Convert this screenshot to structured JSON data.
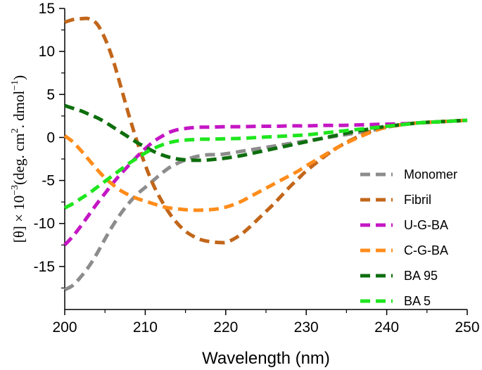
{
  "chart_data": {
    "type": "line",
    "title": "",
    "xlabel": "Wavelength (nm)",
    "ylabel": {
      "prefix": "[θ] × 10",
      "exponent": "−3",
      "body": "(deg. cm",
      "body_exponent": "2",
      "body2": ". dmol",
      "body2_exponent": "−1",
      "suffix": ")"
    },
    "xlim": [
      200,
      250
    ],
    "ylim": [
      -20,
      15
    ],
    "xticks": [
      200,
      210,
      220,
      230,
      240,
      250
    ],
    "yticks": [
      15,
      10,
      5,
      0,
      -5,
      -10,
      -15
    ],
    "ytick_labels": [
      "15",
      "10",
      "5",
      "0",
      "-5",
      "-10",
      "-15"
    ],
    "grid": false,
    "legend_position": "right",
    "series": [
      {
        "name": "Monomer",
        "color": "#8c8c8c",
        "x": [
          200,
          201,
          202,
          203,
          204,
          205,
          206,
          207,
          208,
          209,
          210,
          211,
          212,
          213,
          214,
          215,
          216,
          217,
          218,
          219,
          220,
          222,
          224,
          226,
          228,
          230,
          232,
          234,
          236,
          238,
          240,
          242,
          244,
          246,
          248,
          250
        ],
        "y": [
          -17.7,
          -17.2,
          -16.2,
          -15,
          -13.5,
          -11.8,
          -10.2,
          -8.8,
          -7.6,
          -6.6,
          -5.8,
          -5,
          -4.2,
          -3.5,
          -3,
          -2.6,
          -2.3,
          -2.1,
          -2,
          -2,
          -1.9,
          -1.6,
          -1.3,
          -1,
          -0.7,
          -0.4,
          -0.1,
          0.2,
          0.5,
          0.8,
          1.2,
          1.5,
          1.7,
          1.8,
          1.9,
          2
        ]
      },
      {
        "name": "Fibril",
        "color": "#c2661a",
        "x": [
          200,
          201,
          202,
          203,
          204,
          205,
          206,
          207,
          208,
          209,
          210,
          211,
          212,
          213,
          214,
          215,
          216,
          217,
          218,
          219,
          220,
          221,
          222,
          223,
          224,
          225,
          226,
          227,
          228,
          229,
          230,
          232,
          234,
          236,
          238,
          240,
          242,
          244,
          246,
          248,
          250
        ],
        "y": [
          13.4,
          13.7,
          13.8,
          13.8,
          13.2,
          11.5,
          9,
          5.8,
          2.5,
          -0.5,
          -3.2,
          -5.5,
          -7.3,
          -8.8,
          -10,
          -10.9,
          -11.5,
          -11.9,
          -12.1,
          -12.2,
          -12.2,
          -11.8,
          -11.2,
          -10.4,
          -9.5,
          -8.6,
          -7.7,
          -6.7,
          -5.7,
          -4.8,
          -3.9,
          -2.4,
          -1.1,
          -0.1,
          0.7,
          1.2,
          1.5,
          1.7,
          1.8,
          1.9,
          2
        ]
      },
      {
        "name": "U-G-BA",
        "color": "#c416c4",
        "x": [
          200,
          201,
          202,
          203,
          204,
          205,
          206,
          207,
          208,
          209,
          210,
          211,
          212,
          213,
          214,
          215,
          216,
          217,
          218,
          220,
          222,
          224,
          226,
          228,
          230,
          232,
          234,
          236,
          238,
          240,
          242,
          244,
          246,
          248,
          250
        ],
        "y": [
          -12.5,
          -11.5,
          -10.3,
          -9,
          -7.7,
          -6.5,
          -5.3,
          -4.2,
          -3.2,
          -2.2,
          -1.3,
          -0.5,
          0.1,
          0.6,
          0.9,
          1.05,
          1.15,
          1.2,
          1.2,
          1.25,
          1.25,
          1.3,
          1.3,
          1.35,
          1.35,
          1.4,
          1.4,
          1.45,
          1.5,
          1.55,
          1.6,
          1.7,
          1.8,
          1.9,
          2
        ]
      },
      {
        "name": "C-G-BA",
        "color": "#ff8c1a",
        "x": [
          200,
          201,
          202,
          203,
          204,
          205,
          206,
          207,
          208,
          209,
          210,
          211,
          212,
          213,
          214,
          215,
          216,
          217,
          218,
          219,
          220,
          221,
          222,
          223,
          224,
          225,
          226,
          227,
          228,
          229,
          230,
          232,
          234,
          236,
          238,
          240,
          242,
          244,
          246,
          248,
          250
        ],
        "y": [
          0.2,
          -0.5,
          -1.5,
          -2.6,
          -3.7,
          -4.7,
          -5.5,
          -6.2,
          -6.7,
          -7.1,
          -7.4,
          -7.7,
          -8,
          -8.2,
          -8.3,
          -8.4,
          -8.45,
          -8.45,
          -8.4,
          -8.3,
          -8.1,
          -7.8,
          -7.4,
          -6.9,
          -6.4,
          -5.9,
          -5.4,
          -4.9,
          -4.4,
          -3.9,
          -3.3,
          -2.2,
          -1.1,
          -0.2,
          0.6,
          1.2,
          1.5,
          1.7,
          1.8,
          1.9,
          2
        ]
      },
      {
        "name": "BA 95",
        "color": "#0d6e0d",
        "x": [
          200,
          201,
          202,
          203,
          204,
          205,
          206,
          207,
          208,
          209,
          210,
          211,
          212,
          213,
          214,
          215,
          216,
          217,
          218,
          219,
          220,
          222,
          224,
          226,
          228,
          230,
          232,
          234,
          236,
          238,
          240,
          242,
          244,
          246,
          248,
          250
        ],
        "y": [
          3.7,
          3.4,
          3.1,
          2.7,
          2.3,
          1.8,
          1.2,
          0.6,
          0,
          -0.6,
          -1.1,
          -1.6,
          -2,
          -2.3,
          -2.5,
          -2.6,
          -2.65,
          -2.65,
          -2.6,
          -2.5,
          -2.4,
          -2.1,
          -1.7,
          -1.3,
          -0.9,
          -0.5,
          -0.1,
          0.3,
          0.7,
          1,
          1.3,
          1.5,
          1.7,
          1.8,
          1.9,
          2
        ]
      },
      {
        "name": "BA 5",
        "color": "#1ee61e",
        "x": [
          200,
          201,
          202,
          203,
          204,
          205,
          206,
          207,
          208,
          209,
          210,
          211,
          212,
          213,
          214,
          215,
          216,
          217,
          218,
          220,
          222,
          224,
          226,
          228,
          230,
          232,
          234,
          236,
          238,
          240,
          242,
          244,
          246,
          248,
          250
        ],
        "y": [
          -8.2,
          -7.7,
          -7.1,
          -6.5,
          -5.8,
          -5.1,
          -4.4,
          -3.7,
          -3,
          -2.4,
          -1.8,
          -1.3,
          -0.9,
          -0.6,
          -0.4,
          -0.3,
          -0.25,
          -0.2,
          -0.2,
          -0.15,
          -0.1,
          0,
          0.1,
          0.2,
          0.3,
          0.5,
          0.7,
          0.9,
          1.1,
          1.3,
          1.5,
          1.7,
          1.8,
          1.9,
          2
        ]
      }
    ]
  }
}
